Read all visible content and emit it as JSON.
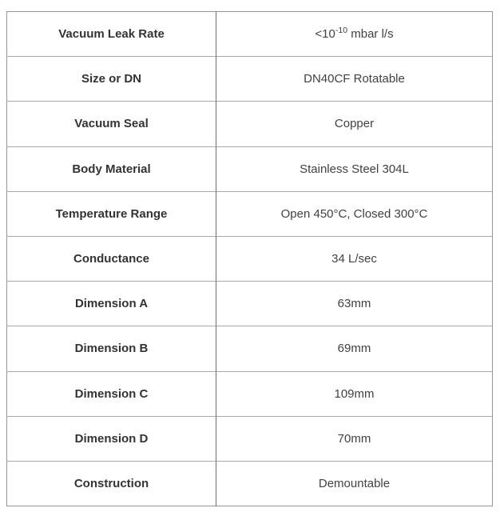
{
  "table": {
    "rows": [
      {
        "label": "Vacuum Leak Rate",
        "value": "<10",
        "value_exp": "-10",
        "value_unit": "mbar l/s"
      },
      {
        "label": "Size or DN",
        "value": "DN40CF Rotatable"
      },
      {
        "label": "Vacuum Seal",
        "value": "Copper"
      },
      {
        "label": "Body Material",
        "value": "Stainless Steel 304L"
      },
      {
        "label": "Temperature Range",
        "value": "Open 450°C, Closed 300°C"
      },
      {
        "label": "Conductance",
        "value": "34 L/sec"
      },
      {
        "label": "Dimension A",
        "value": "63mm"
      },
      {
        "label": "Dimension B",
        "value": "69mm"
      },
      {
        "label": "Dimension C",
        "value": "109mm"
      },
      {
        "label": "Dimension D",
        "value": "70mm"
      },
      {
        "label": "Construction",
        "value": "Demountable"
      }
    ],
    "colors": {
      "outer_border": "#959595",
      "row_divider": "#a9a9a9",
      "column_divider": "#6f6f6f",
      "label_text": "#333333",
      "value_text": "#414141",
      "page_background": "#ffffff"
    }
  }
}
